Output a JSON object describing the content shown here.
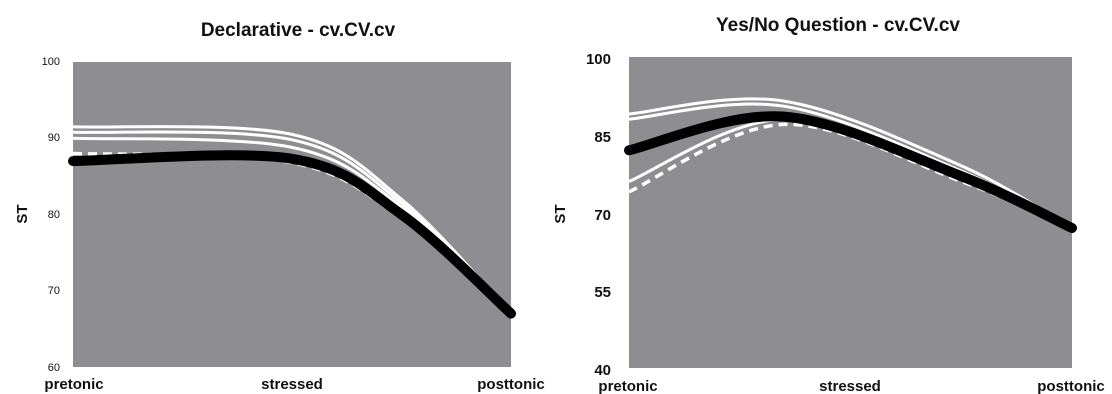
{
  "chart_data": [
    {
      "type": "line",
      "title": "Declarative - cv.CV.cv",
      "ylabel": "ST",
      "xlabel": "",
      "categories": [
        "pretonic",
        "stressed",
        "posttonic"
      ],
      "y_ticks": [
        "60",
        "70",
        "80",
        "90",
        "100"
      ],
      "ylim": [
        60,
        100
      ],
      "background": "#8e8d92",
      "series": [
        {
          "style": "solid-white",
          "color": "#ffffff",
          "x": [
            0,
            0.5,
            0.75,
            1
          ],
          "values": [
            91.5,
            90.5,
            82,
            67
          ]
        },
        {
          "style": "solid-white",
          "color": "#ffffff",
          "x": [
            0,
            0.5,
            0.75,
            1
          ],
          "values": [
            90.8,
            89.8,
            81.5,
            67
          ]
        },
        {
          "style": "solid-white",
          "color": "#ffffff",
          "x": [
            0,
            0.5,
            0.75,
            1
          ],
          "values": [
            90,
            88.8,
            81,
            67
          ]
        },
        {
          "style": "dashed-white",
          "color": "#ffffff",
          "x": [
            0,
            0.5,
            0.75,
            1
          ],
          "values": [
            88,
            86.8,
            79.5,
            67
          ]
        },
        {
          "style": "thick-black",
          "color": "#000000",
          "x": [
            0,
            0.5,
            0.75,
            1
          ],
          "values": [
            87,
            87.3,
            80,
            67
          ]
        }
      ]
    },
    {
      "type": "line",
      "title": "Yes/No Question - cv.CV.cv",
      "ylabel": "ST",
      "xlabel": "",
      "categories": [
        "pretonic",
        "stressed",
        "posttonic"
      ],
      "y_ticks": [
        "40",
        "55",
        "70",
        "85",
        "100"
      ],
      "ylim": [
        40,
        100
      ],
      "background": "#8e8d92",
      "series": [
        {
          "style": "solid-white",
          "color": "#ffffff",
          "x": [
            0,
            0.35,
            0.75,
            1
          ],
          "values": [
            89,
            91.5,
            79,
            67
          ]
        },
        {
          "style": "solid-white",
          "color": "#ffffff",
          "x": [
            0,
            0.35,
            0.75,
            1
          ],
          "values": [
            88,
            90.5,
            78,
            67
          ]
        },
        {
          "style": "solid-white",
          "color": "#ffffff",
          "x": [
            0,
            0.35,
            0.75,
            1
          ],
          "values": [
            76,
            88,
            77,
            67
          ]
        },
        {
          "style": "dashed-white",
          "color": "#ffffff",
          "x": [
            0,
            0.35,
            0.75,
            1
          ],
          "values": [
            74,
            87,
            76,
            67
          ]
        },
        {
          "style": "thick-black",
          "color": "#000000",
          "x": [
            0,
            0.35,
            0.75,
            1
          ],
          "values": [
            82,
            88.5,
            77,
            67
          ]
        }
      ]
    }
  ]
}
